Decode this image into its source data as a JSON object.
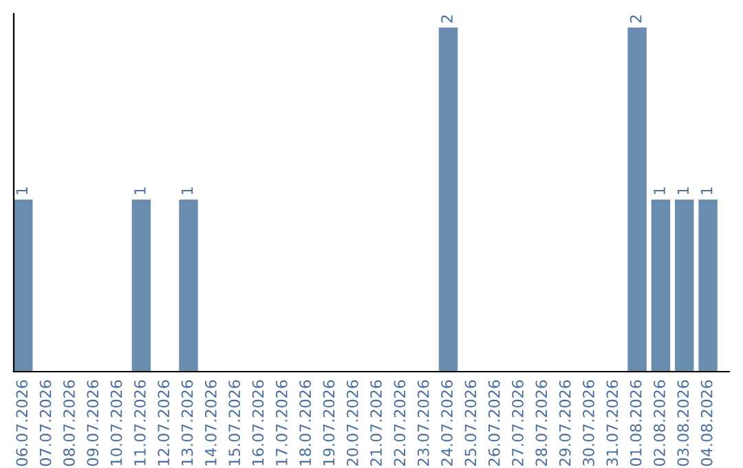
{
  "chart_data": {
    "type": "bar",
    "categories": [
      "06.07.2026",
      "07.07.2026",
      "08.07.2026",
      "09.07.2026",
      "10.07.2026",
      "11.07.2026",
      "12.07.2026",
      "13.07.2026",
      "14.07.2026",
      "15.07.2026",
      "16.07.2026",
      "17.07.2026",
      "18.07.2026",
      "19.07.2026",
      "20.07.2026",
      "21.07.2026",
      "22.07.2026",
      "23.07.2026",
      "24.07.2026",
      "25.07.2026",
      "26.07.2026",
      "27.07.2026",
      "28.07.2026",
      "29.07.2026",
      "30.07.2026",
      "31.07.2026",
      "01.08.2026",
      "02.08.2026",
      "03.08.2026",
      "04.08.2026"
    ],
    "values": [
      1,
      0,
      0,
      0,
      0,
      1,
      0,
      1,
      0,
      0,
      0,
      0,
      0,
      0,
      0,
      0,
      0,
      0,
      2,
      0,
      0,
      0,
      0,
      0,
      0,
      0,
      2,
      1,
      1,
      1
    ],
    "value_labels": [
      "1",
      null,
      null,
      null,
      null,
      "1",
      null,
      "1",
      null,
      null,
      null,
      null,
      null,
      null,
      null,
      null,
      null,
      null,
      "2",
      null,
      null,
      null,
      null,
      null,
      null,
      null,
      "2",
      "1",
      "1",
      "1"
    ],
    "color": "#6a8caf",
    "ylim": [
      0,
      2.08
    ],
    "grid": false,
    "legend": false
  }
}
